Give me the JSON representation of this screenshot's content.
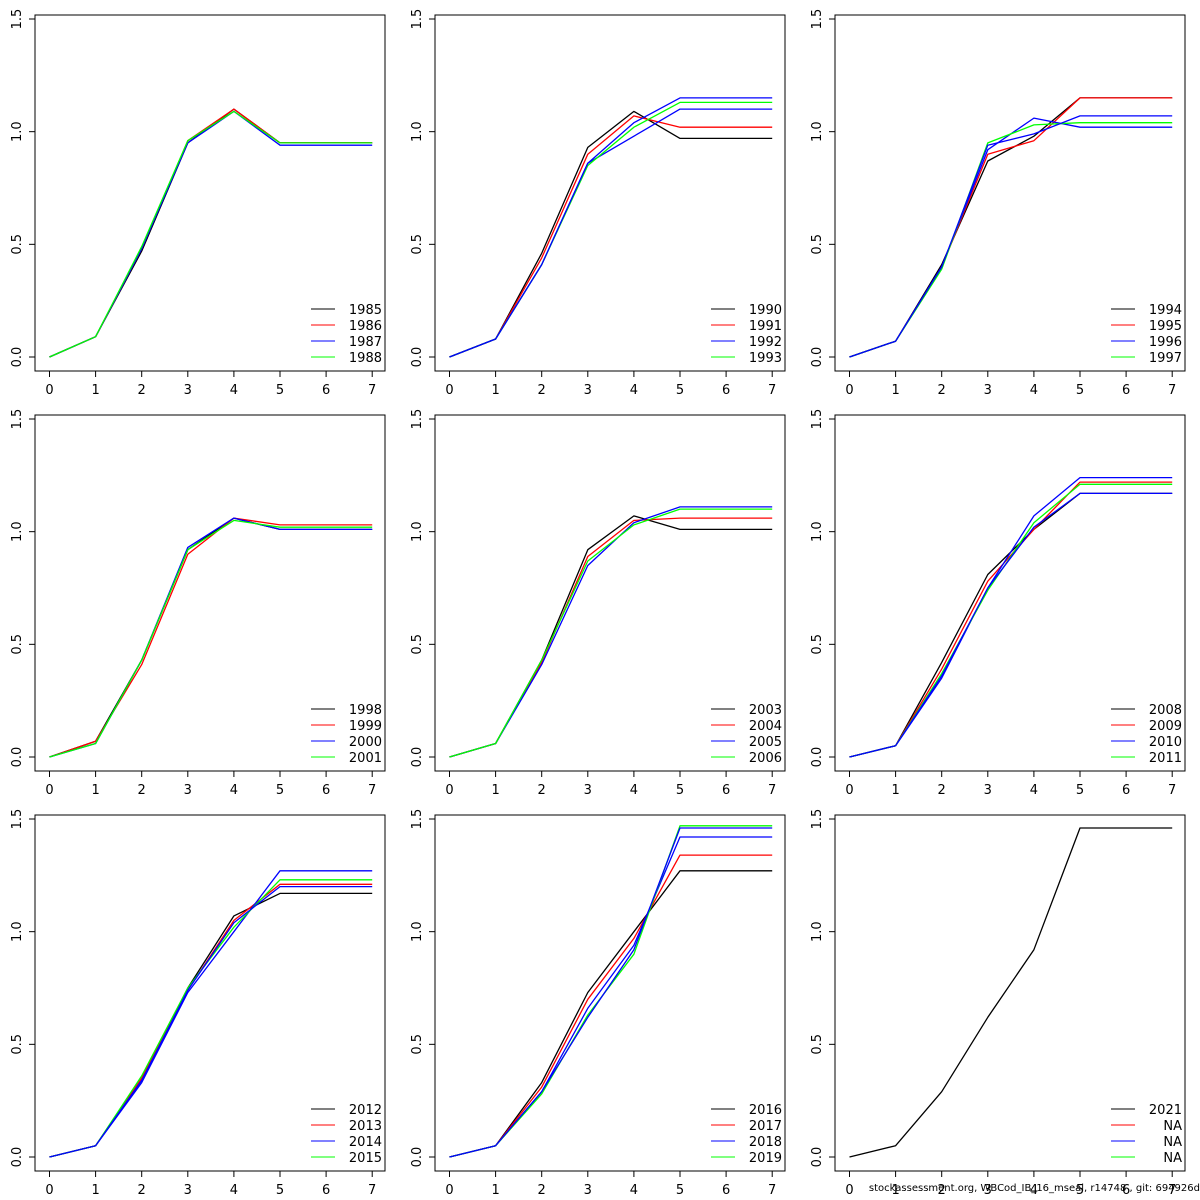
{
  "chart_data": [
    {
      "type": "line",
      "x": [
        0,
        1,
        2,
        3,
        4,
        5,
        6,
        7
      ],
      "xlim": [
        0,
        7
      ],
      "ylim": [
        0,
        1.5
      ],
      "xticks": [
        "0",
        "1",
        "2",
        "3",
        "4",
        "5",
        "6",
        "7"
      ],
      "yticks": [
        "0.0",
        "0.5",
        "1.0",
        "1.5"
      ],
      "legend_position": "bottom-right",
      "series": [
        {
          "name": "1985",
          "color": "#000000",
          "values": [
            0,
            0.09,
            0.47,
            0.95,
            1.1,
            0.95,
            0.95,
            0.95
          ]
        },
        {
          "name": "1986",
          "color": "#ff0000",
          "values": [
            0,
            0.09,
            0.48,
            0.96,
            1.1,
            0.95,
            0.95,
            0.95
          ]
        },
        {
          "name": "1987",
          "color": "#0000ff",
          "values": [
            0,
            0.09,
            0.48,
            0.95,
            1.09,
            0.94,
            0.94,
            0.94
          ]
        },
        {
          "name": "1988",
          "color": "#00ff00",
          "values": [
            0,
            0.09,
            0.49,
            0.96,
            1.09,
            0.95,
            0.95,
            0.95
          ]
        }
      ]
    },
    {
      "type": "line",
      "x": [
        0,
        1,
        2,
        3,
        4,
        5,
        6,
        7
      ],
      "xlim": [
        0,
        7
      ],
      "ylim": [
        0,
        1.5
      ],
      "xticks": [
        "0",
        "1",
        "2",
        "3",
        "4",
        "5",
        "6",
        "7"
      ],
      "yticks": [
        "0.0",
        "0.5",
        "1.0",
        "1.5"
      ],
      "legend_position": "bottom-right",
      "series": [
        {
          "name": "1990",
          "color": "#000000",
          "values": [
            0,
            0.08,
            0.46,
            0.93,
            1.09,
            0.97,
            0.97,
            0.97
          ]
        },
        {
          "name": "1991",
          "color": "#ff0000",
          "values": [
            0,
            0.08,
            0.44,
            0.9,
            1.07,
            1.02,
            1.02,
            1.02
          ]
        },
        {
          "name": "1992",
          "color": "#0000ff",
          "values": [
            0,
            0.08,
            0.41,
            0.86,
            0.98,
            1.1,
            1.1,
            1.1
          ]
        },
        {
          "name": "1993",
          "color": "#00ff00",
          "values": [
            0,
            0.08,
            0.41,
            0.85,
            1.02,
            1.13,
            1.13,
            1.13
          ]
        },
        {
          "color": "#0000ff",
          "values": [
            0,
            0.08,
            0.41,
            0.86,
            1.04,
            1.15,
            1.15,
            1.15
          ]
        }
      ]
    },
    {
      "type": "line",
      "x": [
        0,
        1,
        2,
        3,
        4,
        5,
        6,
        7
      ],
      "xlim": [
        0,
        7
      ],
      "ylim": [
        0,
        1.5
      ],
      "xticks": [
        "0",
        "1",
        "2",
        "3",
        "4",
        "5",
        "6",
        "7"
      ],
      "yticks": [
        "0.0",
        "0.5",
        "1.0",
        "1.5"
      ],
      "legend_position": "bottom-right",
      "series": [
        {
          "name": "1994",
          "color": "#000000",
          "values": [
            0,
            0.07,
            0.41,
            0.87,
            0.98,
            1.15,
            1.15,
            1.15
          ]
        },
        {
          "name": "1995",
          "color": "#ff0000",
          "values": [
            0,
            0.07,
            0.4,
            0.9,
            0.96,
            1.15,
            1.15,
            1.15
          ]
        },
        {
          "name": "1996",
          "color": "#0000ff",
          "values": [
            0,
            0.07,
            0.4,
            0.92,
            1.06,
            1.02,
            1.02,
            1.02
          ]
        },
        {
          "name": "1997",
          "color": "#00ff00",
          "values": [
            0,
            0.07,
            0.39,
            0.95,
            1.03,
            1.04,
            1.04,
            1.04
          ]
        },
        {
          "color": "#0000ff",
          "values": [
            0,
            0.07,
            0.4,
            0.94,
            0.99,
            1.07,
            1.07,
            1.07
          ]
        }
      ]
    },
    {
      "type": "line",
      "x": [
        0,
        1,
        2,
        3,
        4,
        5,
        6,
        7
      ],
      "xlim": [
        0,
        7
      ],
      "ylim": [
        0,
        1.5
      ],
      "xticks": [
        "0",
        "1",
        "2",
        "3",
        "4",
        "5",
        "6",
        "7"
      ],
      "yticks": [
        "0.0",
        "0.5",
        "1.0",
        "1.5"
      ],
      "legend_position": "bottom-right",
      "series": [
        {
          "name": "1998",
          "color": "#000000",
          "values": [
            0,
            0.07,
            0.43,
            0.92,
            1.06,
            1.01,
            1.01,
            1.01
          ]
        },
        {
          "name": "1999",
          "color": "#ff0000",
          "values": [
            0,
            0.07,
            0.41,
            0.9,
            1.06,
            1.03,
            1.03,
            1.03
          ]
        },
        {
          "name": "2000",
          "color": "#0000ff",
          "values": [
            0,
            0.06,
            0.43,
            0.93,
            1.06,
            1.01,
            1.01,
            1.01
          ]
        },
        {
          "name": "2001",
          "color": "#00ff00",
          "values": [
            0,
            0.06,
            0.43,
            0.92,
            1.05,
            1.02,
            1.02,
            1.02
          ]
        }
      ]
    },
    {
      "type": "line",
      "x": [
        0,
        1,
        2,
        3,
        4,
        5,
        6,
        7
      ],
      "xlim": [
        0,
        7
      ],
      "ylim": [
        0,
        1.5
      ],
      "xticks": [
        "0",
        "1",
        "2",
        "3",
        "4",
        "5",
        "6",
        "7"
      ],
      "yticks": [
        "0.0",
        "0.5",
        "1.0",
        "1.5"
      ],
      "legend_position": "bottom-right",
      "series": [
        {
          "name": "2003",
          "color": "#000000",
          "values": [
            0,
            0.06,
            0.43,
            0.92,
            1.07,
            1.01,
            1.01,
            1.01
          ]
        },
        {
          "name": "2004",
          "color": "#ff0000",
          "values": [
            0,
            0.06,
            0.42,
            0.89,
            1.05,
            1.06,
            1.06,
            1.06
          ]
        },
        {
          "name": "2005",
          "color": "#0000ff",
          "values": [
            0,
            0.06,
            0.41,
            0.85,
            1.04,
            1.11,
            1.11,
            1.11
          ]
        },
        {
          "name": "2006",
          "color": "#00ff00",
          "values": [
            0,
            0.06,
            0.43,
            0.87,
            1.03,
            1.1,
            1.1,
            1.1
          ]
        }
      ]
    },
    {
      "type": "line",
      "x": [
        0,
        1,
        2,
        3,
        4,
        5,
        6,
        7
      ],
      "xlim": [
        0,
        7
      ],
      "ylim": [
        0,
        1.5
      ],
      "xticks": [
        "0",
        "1",
        "2",
        "3",
        "4",
        "5",
        "6",
        "7"
      ],
      "yticks": [
        "0.0",
        "0.5",
        "1.0",
        "1.5"
      ],
      "legend_position": "bottom-right",
      "series": [
        {
          "name": "2008",
          "color": "#000000",
          "values": [
            0,
            0.05,
            0.42,
            0.81,
            1.01,
            1.17,
            1.17,
            1.17
          ]
        },
        {
          "name": "2009",
          "color": "#ff0000",
          "values": [
            0,
            0.05,
            0.39,
            0.78,
            1.01,
            1.22,
            1.22,
            1.22
          ]
        },
        {
          "name": "2010",
          "color": "#0000ff",
          "values": [
            0,
            0.05,
            0.35,
            0.75,
            1.07,
            1.24,
            1.24,
            1.24
          ]
        },
        {
          "name": "2011",
          "color": "#00ff00",
          "values": [
            0,
            0.05,
            0.37,
            0.74,
            1.04,
            1.21,
            1.21,
            1.21
          ]
        },
        {
          "color": "#0000ff",
          "values": [
            0,
            0.05,
            0.36,
            0.75,
            1.02,
            1.17,
            1.17,
            1.17
          ]
        }
      ]
    },
    {
      "type": "line",
      "x": [
        0,
        1,
        2,
        3,
        4,
        5,
        6,
        7
      ],
      "xlim": [
        0,
        7
      ],
      "ylim": [
        0,
        1.5
      ],
      "xticks": [
        "0",
        "1",
        "2",
        "3",
        "4",
        "5",
        "6",
        "7"
      ],
      "yticks": [
        "0.0",
        "0.5",
        "1.0",
        "1.5"
      ],
      "legend_position": "bottom-right",
      "series": [
        {
          "name": "2012",
          "color": "#000000",
          "values": [
            0,
            0.05,
            0.34,
            0.75,
            1.07,
            1.17,
            1.17,
            1.17
          ]
        },
        {
          "name": "2013",
          "color": "#ff0000",
          "values": [
            0,
            0.05,
            0.35,
            0.74,
            1.05,
            1.21,
            1.21,
            1.21
          ]
        },
        {
          "name": "2014",
          "color": "#0000ff",
          "values": [
            0,
            0.05,
            0.33,
            0.73,
            1.0,
            1.27,
            1.27,
            1.27
          ]
        },
        {
          "name": "2015",
          "color": "#00ff00",
          "values": [
            0,
            0.05,
            0.36,
            0.75,
            1.02,
            1.23,
            1.23,
            1.23
          ]
        },
        {
          "color": "#0000ff",
          "values": [
            0,
            0.05,
            0.34,
            0.74,
            1.04,
            1.2,
            1.2,
            1.2
          ]
        }
      ]
    },
    {
      "type": "line",
      "x": [
        0,
        1,
        2,
        3,
        4,
        5,
        6,
        7
      ],
      "xlim": [
        0,
        7
      ],
      "ylim": [
        0,
        1.5
      ],
      "xticks": [
        "0",
        "1",
        "2",
        "3",
        "4",
        "5",
        "6",
        "7"
      ],
      "yticks": [
        "0.0",
        "0.5",
        "1.0",
        "1.5"
      ],
      "legend_position": "bottom-right",
      "series": [
        {
          "name": "2016",
          "color": "#000000",
          "values": [
            0,
            0.05,
            0.33,
            0.73,
            1.0,
            1.27,
            1.27,
            1.27
          ]
        },
        {
          "name": "2017",
          "color": "#ff0000",
          "values": [
            0,
            0.05,
            0.31,
            0.7,
            0.97,
            1.34,
            1.34,
            1.34
          ]
        },
        {
          "name": "2018",
          "color": "#0000ff",
          "values": [
            0,
            0.05,
            0.29,
            0.66,
            0.94,
            1.42,
            1.42,
            1.42
          ]
        },
        {
          "name": "2019",
          "color": "#00ff00",
          "values": [
            0,
            0.05,
            0.28,
            0.63,
            0.9,
            1.47,
            1.47,
            1.47
          ]
        },
        {
          "color": "#0000ff",
          "values": [
            0,
            0.05,
            0.29,
            0.62,
            0.92,
            1.46,
            1.46,
            1.46
          ]
        }
      ]
    },
    {
      "type": "line",
      "x": [
        0,
        1,
        2,
        3,
        4,
        5,
        6,
        7
      ],
      "xlim": [
        0,
        7
      ],
      "ylim": [
        0,
        1.5
      ],
      "xticks": [
        "0",
        "1",
        "2",
        "3",
        "4",
        "5",
        "6",
        "7"
      ],
      "yticks": [
        "0.0",
        "0.5",
        "1.0",
        "1.5"
      ],
      "legend_position": "bottom-right",
      "series": [
        {
          "name": "2021",
          "color": "#000000",
          "values": [
            0,
            0.05,
            0.29,
            0.62,
            0.92,
            1.46,
            1.46,
            1.46
          ]
        }
      ],
      "legend_extra": [
        {
          "name": "NA",
          "color": "#ff0000"
        },
        {
          "name": "NA",
          "color": "#0000ff"
        },
        {
          "name": "NA",
          "color": "#00ff00"
        }
      ]
    }
  ],
  "footer": {
    "text": "stockassessment.org, WBCod_IB_16_mseal, r14748 , git: 694926d"
  }
}
